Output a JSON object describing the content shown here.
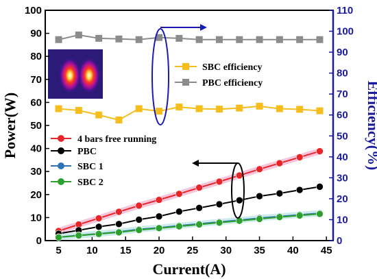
{
  "chart_data": {
    "type": "line",
    "xlabel": "Current(A)",
    "ylabel_left": "Power(W)",
    "ylabel_right": "Efficiency(%)",
    "xlim": [
      3,
      46
    ],
    "ylim_left": [
      0,
      100
    ],
    "ylim_right": [
      0,
      110
    ],
    "x_ticks": [
      5,
      10,
      15,
      20,
      25,
      30,
      35,
      40,
      45
    ],
    "y_left_ticks": [
      0,
      10,
      20,
      30,
      40,
      50,
      60,
      70,
      80,
      90,
      100
    ],
    "y_right_ticks": [
      0,
      10,
      20,
      30,
      40,
      50,
      60,
      70,
      80,
      90,
      100,
      110
    ],
    "legend_upper": [
      "SBC efficiency",
      "PBC efficiency"
    ],
    "legend_lower": [
      "4 bars free running",
      "PBC",
      "SBC 1",
      "SBC 2"
    ],
    "series": [
      {
        "name": "4 bars free running",
        "axis": "left",
        "color": "#e8262a",
        "marker": "circle",
        "x": [
          5,
          8,
          11,
          14,
          17,
          20,
          23,
          26,
          29,
          32,
          35,
          38,
          41,
          44
        ],
        "y": [
          4.2,
          7.0,
          9.7,
          12.5,
          15.2,
          17.7,
          20.3,
          23.0,
          25.6,
          28.3,
          31.0,
          33.6,
          36.2,
          38.8
        ]
      },
      {
        "name": "PBC",
        "axis": "left",
        "color": "#000000",
        "marker": "circle",
        "x": [
          5,
          8,
          11,
          14,
          17,
          20,
          23,
          26,
          29,
          32,
          35,
          38,
          41,
          44
        ],
        "y": [
          3.0,
          4.5,
          6.0,
          7.2,
          9.1,
          10.5,
          12.6,
          14.2,
          15.8,
          17.5,
          19.3,
          20.5,
          22.0,
          23.4
        ]
      },
      {
        "name": "SBC 1",
        "axis": "left",
        "color": "#2e74b5",
        "marker": "circle",
        "x": [
          5,
          8,
          11,
          14,
          17,
          20,
          23,
          26,
          29,
          32,
          35,
          38,
          41,
          44
        ],
        "y": [
          1.5,
          2.3,
          3.0,
          3.8,
          4.9,
          5.6,
          6.5,
          7.3,
          8.1,
          8.9,
          9.8,
          10.5,
          11.2,
          11.9
        ]
      },
      {
        "name": "SBC 2",
        "axis": "left",
        "color": "#2ea02e",
        "marker": "circle",
        "x": [
          5,
          8,
          11,
          14,
          17,
          20,
          23,
          26,
          29,
          32,
          35,
          38,
          41,
          44
        ],
        "y": [
          1.4,
          2.2,
          2.9,
          3.6,
          4.6,
          5.4,
          6.2,
          7.0,
          7.8,
          8.6,
          9.4,
          10.2,
          10.9,
          11.6
        ]
      },
      {
        "name": "SBC efficiency",
        "axis": "right",
        "color": "#f5be1c",
        "marker": "square",
        "x": [
          5,
          8,
          11,
          14,
          17,
          20,
          23,
          26,
          29,
          32,
          35,
          38,
          41,
          44
        ],
        "y": [
          63.0,
          62.2,
          60.0,
          57.6,
          63.0,
          61.8,
          63.8,
          63.0,
          62.8,
          63.3,
          64.2,
          63.0,
          62.7,
          62.0
        ]
      },
      {
        "name": "PBC efficiency",
        "axis": "right",
        "color": "#8c8c8c",
        "marker": "square",
        "x": [
          5,
          8,
          11,
          14,
          17,
          20,
          23,
          26,
          29,
          32,
          35,
          38,
          41,
          44
        ],
        "y": [
          96.0,
          98.2,
          96.6,
          96.3,
          96.0,
          97.0,
          96.6,
          96.0,
          96.0,
          96.0,
          96.0,
          96.0,
          96.0,
          96.0
        ]
      }
    ],
    "inset_image": "beam-profile"
  }
}
